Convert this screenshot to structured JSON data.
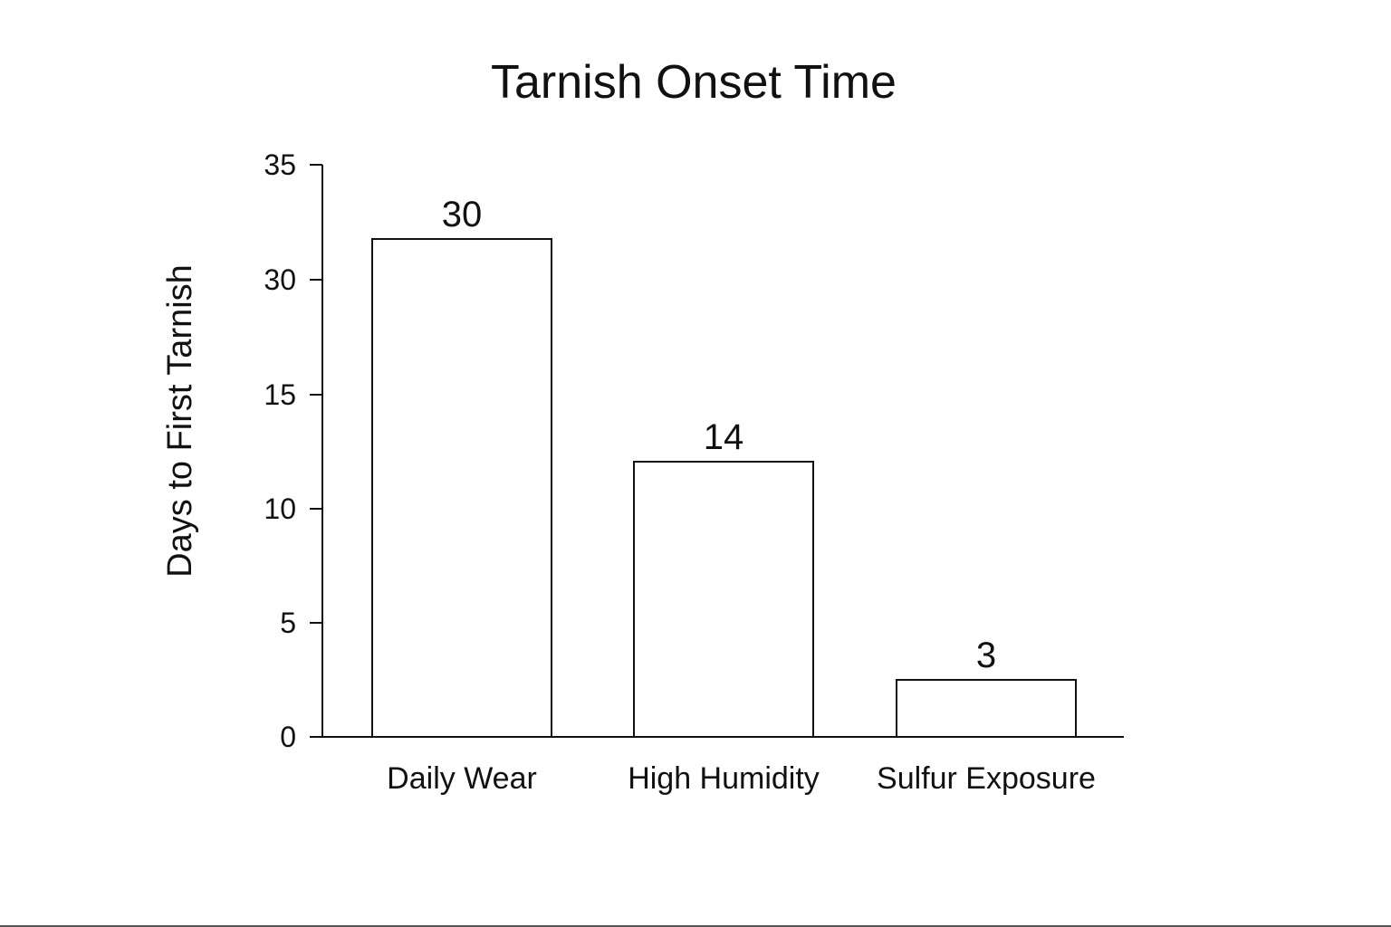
{
  "chart_data": {
    "type": "bar",
    "title": "Tarnish Onset Time",
    "xlabel": "",
    "ylabel": "Days to First Tarnish",
    "categories": [
      "Daily Wear",
      "High Humidity",
      "Sulfur Exposure"
    ],
    "values": [
      30,
      14,
      3
    ],
    "value_labels": [
      "30",
      "14",
      "3"
    ],
    "y_ticks": [
      0,
      5,
      10,
      15,
      30,
      35
    ],
    "y_tick_labels": [
      "0",
      "5",
      "10",
      "15",
      "30",
      "35"
    ],
    "grid": false,
    "legend": "none",
    "colors": {
      "bar_fill": "#ffffff",
      "bar_stroke": "#111111",
      "text": "#111111"
    }
  }
}
